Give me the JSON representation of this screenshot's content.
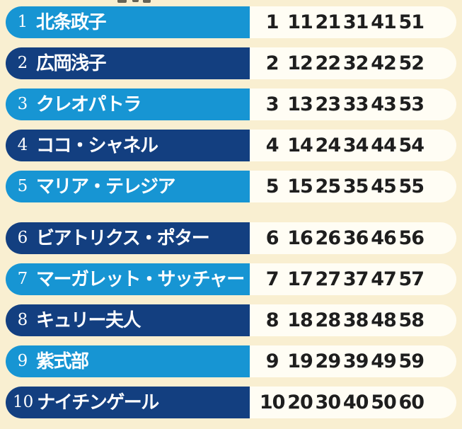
{
  "page": {
    "background_color": "#f9efd1",
    "top_edge_cropped_text_remnant": true
  },
  "colors": {
    "light_blue": "#1795d3",
    "dark_blue": "#133f80",
    "row_background": "#fffdf4",
    "number_text": "#1e1e1e",
    "name_text": "#ffffff"
  },
  "list": {
    "groups": [
      {
        "rows": [
          {
            "rank": "1",
            "name": "北条政子",
            "numbers": [
              "1",
              "11",
              "21",
              "31",
              "41",
              "51"
            ]
          },
          {
            "rank": "2",
            "name": "広岡浅子",
            "numbers": [
              "2",
              "12",
              "22",
              "32",
              "42",
              "52"
            ]
          },
          {
            "rank": "3",
            "name": "クレオパトラ",
            "numbers": [
              "3",
              "13",
              "23",
              "33",
              "43",
              "53"
            ]
          },
          {
            "rank": "4",
            "name": "ココ・シャネル",
            "numbers": [
              "4",
              "14",
              "24",
              "34",
              "44",
              "54"
            ]
          },
          {
            "rank": "5",
            "name": "マリア・テレジア",
            "numbers": [
              "5",
              "15",
              "25",
              "35",
              "45",
              "55"
            ]
          }
        ]
      },
      {
        "rows": [
          {
            "rank": "6",
            "name": "ビアトリクス・ポター",
            "numbers": [
              "6",
              "16",
              "26",
              "36",
              "46",
              "56"
            ]
          },
          {
            "rank": "7",
            "name": "マーガレット・サッチャー",
            "numbers": [
              "7",
              "17",
              "27",
              "37",
              "47",
              "57"
            ]
          },
          {
            "rank": "8",
            "name": "キュリー夫人",
            "numbers": [
              "8",
              "18",
              "28",
              "38",
              "48",
              "58"
            ]
          },
          {
            "rank": "9",
            "name": "紫式部",
            "numbers": [
              "9",
              "19",
              "29",
              "39",
              "49",
              "59"
            ]
          },
          {
            "rank": "10",
            "name": "ナイチンゲール",
            "numbers": [
              "10",
              "20",
              "30",
              "40",
              "50",
              "60"
            ]
          }
        ]
      }
    ]
  }
}
